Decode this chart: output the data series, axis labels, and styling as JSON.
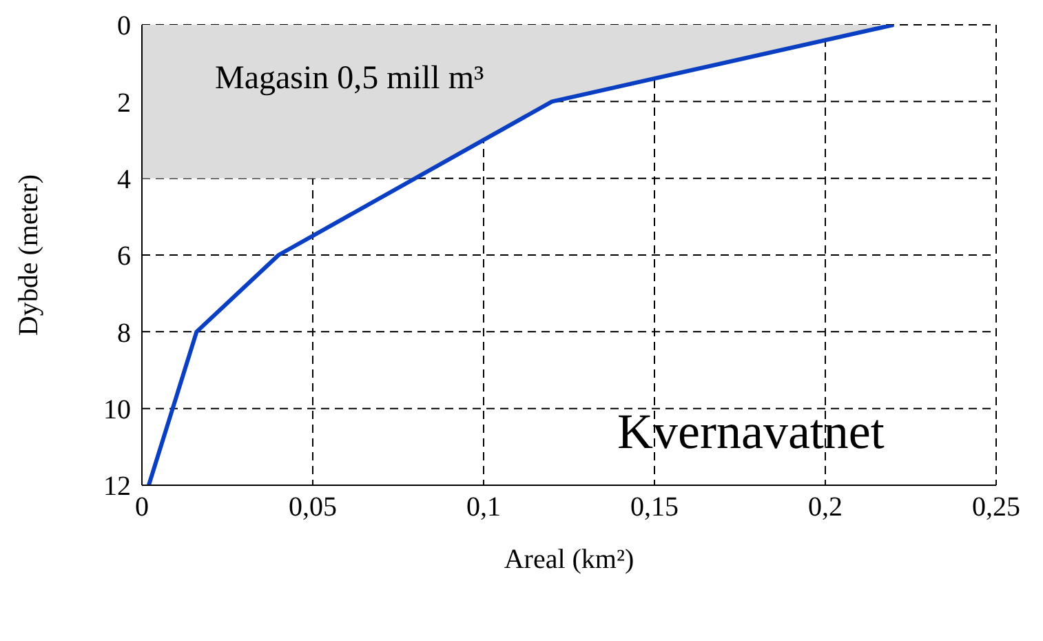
{
  "chart_data": {
    "type": "line",
    "xlabel": "Areal (km²)",
    "ylabel": "Dybde (meter)",
    "xlim": [
      0,
      0.25
    ],
    "xticks": [
      0,
      {
        "value": 0.05,
        "label": "0,05"
      },
      {
        "value": 0.1,
        "label": "0,1"
      },
      {
        "value": 0.15,
        "label": "0,15"
      },
      {
        "value": 0.2,
        "label": "0,2"
      },
      {
        "value": 0.25,
        "label": "0,25"
      }
    ],
    "ylim": [
      12,
      0
    ],
    "yticks": [
      0,
      2,
      4,
      6,
      8,
      10,
      12
    ],
    "series": [
      {
        "type": "area",
        "color": "#dcdcdc",
        "x": [
          0,
          0.08,
          0.12,
          0.22
        ],
        "values": [
          4,
          4,
          2,
          0
        ]
      },
      {
        "color": "#0a3fc4",
        "x": [
          0.22,
          0.12,
          0.04,
          0.016,
          0.002
        ],
        "values": [
          0,
          2,
          6,
          8,
          12
        ]
      }
    ],
    "annotations": [
      "Magasin 0,5 mill m³",
      "Kvernavatnet"
    ],
    "grid": true,
    "line_style": "solid",
    "marker": "none",
    "legend": false
  }
}
